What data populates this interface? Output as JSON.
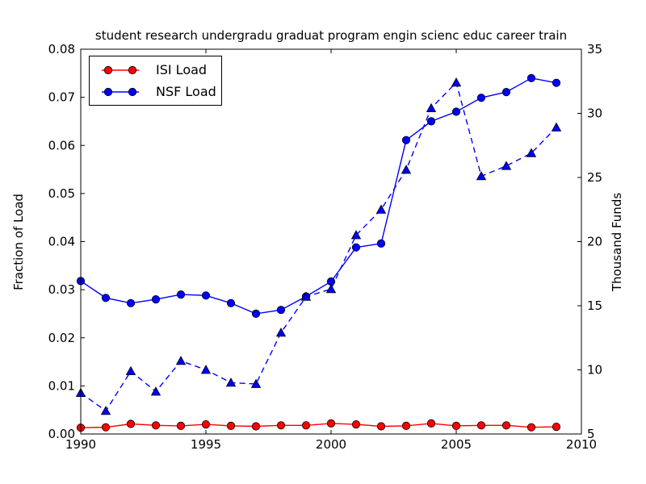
{
  "figure": {
    "background": "#ffffff"
  },
  "chart_data": {
    "type": "line",
    "title": "student research undergradu graduat program engin scienc educ career train",
    "ylabel_left": "Fraction of Load",
    "ylabel_right": "Thousand Funds",
    "xlim": [
      1990,
      2010
    ],
    "ylim_left": [
      0.0,
      0.08
    ],
    "ylim_right": [
      5,
      35
    ],
    "grid": false,
    "x_ticks": {
      "values": [
        1990,
        1995,
        2000,
        2005,
        2010
      ],
      "labels": [
        "1990",
        "1995",
        "2000",
        "2005",
        "2010"
      ]
    },
    "y_left_ticks": {
      "values": [
        0.0,
        0.01,
        0.02,
        0.03,
        0.04,
        0.05,
        0.06,
        0.07,
        0.08
      ],
      "labels": [
        "0.00",
        "0.01",
        "0.02",
        "0.03",
        "0.04",
        "0.05",
        "0.06",
        "0.07",
        "0.08"
      ]
    },
    "y_right_ticks": {
      "values": [
        5,
        10,
        15,
        20,
        25,
        30,
        35
      ],
      "labels": [
        "5",
        "10",
        "15",
        "20",
        "25",
        "30",
        "35"
      ]
    },
    "x": [
      1990,
      1991,
      1992,
      1993,
      1994,
      1995,
      1996,
      1997,
      1998,
      1999,
      2000,
      2001,
      2002,
      2003,
      2004,
      2005,
      2006,
      2007,
      2008,
      2009
    ],
    "series": [
      {
        "name": "ISI Load",
        "axis": "left",
        "color": "#ff0000",
        "style": "solid",
        "marker": "circle",
        "values": [
          0.0013,
          0.0014,
          0.0021,
          0.0018,
          0.0017,
          0.002,
          0.0017,
          0.0016,
          0.0018,
          0.0018,
          0.0022,
          0.002,
          0.0016,
          0.0017,
          0.0022,
          0.0017,
          0.0018,
          0.0018,
          0.0014,
          0.0015
        ]
      },
      {
        "name": "NSF Load",
        "axis": "left",
        "color": "#0000ff",
        "style": "solid",
        "marker": "circle",
        "values": [
          0.0318,
          0.0283,
          0.0272,
          0.028,
          0.029,
          0.0288,
          0.0272,
          0.025,
          0.0258,
          0.0286,
          0.0317,
          0.0388,
          0.0396,
          0.0611,
          0.065,
          0.067,
          0.0699,
          0.0711,
          0.074,
          0.073
        ]
      },
      {
        "name": "thousand-funds-dashed",
        "axis": "right",
        "color": "#0000ff",
        "style": "dashed",
        "marker": "triangle",
        "values": [
          8.2,
          6.8,
          9.9,
          8.3,
          10.7,
          10.0,
          9.0,
          8.9,
          12.9,
          15.7,
          16.3,
          20.5,
          22.5,
          25.6,
          30.4,
          32.4,
          25.1,
          25.9,
          26.9,
          28.9
        ]
      }
    ],
    "legend": {
      "position": "upper left",
      "entries": [
        "ISI Load",
        "NSF Load"
      ]
    }
  }
}
